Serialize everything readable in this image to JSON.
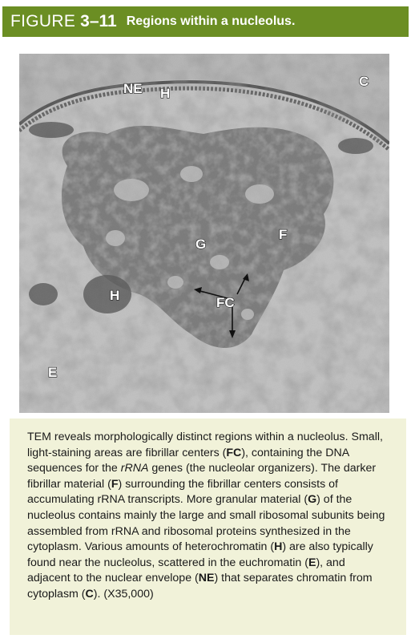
{
  "figure": {
    "word": "FIGURE",
    "number": "3–11",
    "title": "Regions within a nucleolus."
  },
  "micrograph": {
    "labels": {
      "ne": "NE",
      "h_top": "H",
      "c": "C",
      "g": "G",
      "f": "F",
      "h_left": "H",
      "fc": "FC",
      "e": "E"
    }
  },
  "caption": {
    "s1": "TEM reveals morphologically distinct regions within a nucleolus. Small, light-staining areas are fibrillar centers (",
    "fc": "FC",
    "s2": "), containing the DNA sequences for the ",
    "rrna": "rRNA",
    "s3": " genes (the nucleolar organizers). The darker fibrillar material (",
    "f": "F",
    "s4": ") surrounding the fibrillar centers consists of accumulating rRNA transcripts. More granular material (",
    "g": "G",
    "s5": ") of the nucleolus contains mainly the large and small ribosomal subunits being assembled from rRNA and ribosomal proteins synthesized in the cytoplasm. Various amounts of heterochromatin (",
    "h": "H",
    "s6": ") are also typically found near the nucleolus, scattered in the euchromatin (",
    "e": "E",
    "s7": "), and adjacent to the nuclear envelope (",
    "ne": "NE",
    "s8": ") that separates chromatin from cytoplasm (",
    "c": "C",
    "s9": "). (X35,000)"
  },
  "colors": {
    "header_bg": "#6b8e23",
    "caption_bg": "#f1f2d9"
  }
}
